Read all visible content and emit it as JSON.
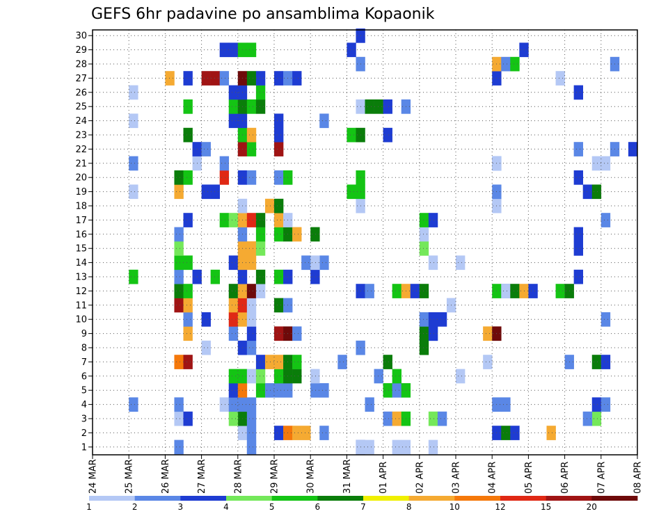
{
  "chart_data": {
    "type": "heatmap",
    "title": "GEFS 6hr padavine po ansamblima Kopaonik",
    "y_ticks": [
      "1",
      "2",
      "3",
      "4",
      "5",
      "6",
      "7",
      "8",
      "9",
      "10",
      "11",
      "12",
      "13",
      "14",
      "15",
      "16",
      "17",
      "18",
      "19",
      "20",
      "21",
      "22",
      "23",
      "24",
      "25",
      "26",
      "27",
      "28",
      "29",
      "30"
    ],
    "x_ticks": [
      "24 MAR",
      "25 MAR",
      "26 MAR",
      "27 MAR",
      "28 MAR",
      "29 MAR",
      "30 MAR",
      "31 MAR",
      "01 APR",
      "02 APR",
      "03 APR",
      "04 APR",
      "05 APR",
      "06 APR",
      "07 APR",
      "08 APR"
    ],
    "members": 30,
    "steps_per_day": 4,
    "grid": true,
    "colorbar": {
      "labels": [
        "1",
        "2",
        "3",
        "4",
        "5",
        "6",
        "7",
        "8",
        "10",
        "12",
        "15",
        "20"
      ],
      "colors": [
        "#b4c8f5",
        "#5a87e6",
        "#1e3cd2",
        "#74e85a",
        "#14c414",
        "#0a7d0a",
        "#f0f000",
        "#f5aa32",
        "#f5780a",
        "#e02814",
        "#a01414",
        "#6e0a0a"
      ]
    },
    "cells": [
      [
        "28 MAR",
        1,
        1
      ],
      [
        "28 MAR",
        1,
        2
      ],
      [
        "26 MAR",
        1,
        2
      ],
      [
        "31 MAR",
        1,
        3
      ],
      [
        "31 MAR",
        1,
        1
      ],
      [
        "01 APR",
        1,
        1
      ],
      [
        "31 MAR",
        2,
        1
      ],
      [
        "01 APR",
        2,
        1
      ],
      [
        "02 APR",
        1,
        1
      ],
      [
        "28 MAR",
        0,
        1
      ],
      [
        "28 MAR",
        1,
        2
      ],
      [
        "29 MAR",
        0,
        3
      ],
      [
        "29 MAR",
        1,
        10
      ],
      [
        "29 MAR",
        2,
        8
      ],
      [
        "29 MAR",
        3,
        8
      ],
      [
        "30 MAR",
        1,
        2
      ],
      [
        "04 APR",
        0,
        3
      ],
      [
        "04 APR",
        1,
        6
      ],
      [
        "04 APR",
        2,
        3
      ],
      [
        "05 APR",
        2,
        8
      ],
      [
        "26 MAR",
        1,
        1
      ],
      [
        "26 MAR",
        2,
        3
      ],
      [
        "28 MAR",
        0,
        6
      ],
      [
        "27 MAR",
        3,
        4
      ],
      [
        "28 MAR",
        1,
        2
      ],
      [
        "01 APR",
        0,
        2
      ],
      [
        "01 APR",
        1,
        8
      ],
      [
        "01 APR",
        2,
        5
      ],
      [
        "02 APR",
        1,
        4
      ],
      [
        "02 APR",
        2,
        2
      ],
      [
        "06 APR",
        3,
        4
      ],
      [
        "06 APR",
        2,
        2
      ],
      [
        "25 MAR",
        0,
        2
      ],
      [
        "26 MAR",
        1,
        2
      ],
      [
        "27 MAR",
        2,
        1
      ],
      [
        "27 MAR",
        3,
        2
      ],
      [
        "28 MAR",
        0,
        2
      ],
      [
        "28 MAR",
        1,
        2
      ],
      [
        "31 MAR",
        2,
        2
      ],
      [
        "04 APR",
        1,
        2
      ],
      [
        "04 APR",
        0,
        2
      ],
      [
        "06 APR",
        3,
        3
      ],
      [
        "07 APR",
        0,
        2
      ],
      [
        "27 MAR",
        3,
        3
      ],
      [
        "28 MAR",
        0,
        10
      ],
      [
        "28 MAR",
        2,
        5
      ],
      [
        "28 MAR",
        3,
        2
      ],
      [
        "29 MAR",
        0,
        2
      ],
      [
        "29 MAR",
        1,
        2
      ],
      [
        "30 MAR",
        0,
        2
      ],
      [
        "30 MAR",
        1,
        2
      ],
      [
        "01 APR",
        0,
        5
      ],
      [
        "01 APR",
        1,
        2
      ],
      [
        "01 APR",
        2,
        5
      ],
      [
        "03 APR",
        0,
        1
      ],
      [
        "27 MAR",
        3,
        5
      ],
      [
        "28 MAR",
        0,
        5
      ],
      [
        "28 MAR",
        1,
        1
      ],
      [
        "28 MAR",
        2,
        4
      ],
      [
        "29 MAR",
        0,
        5
      ],
      [
        "29 MAR",
        1,
        6
      ],
      [
        "29 MAR",
        2,
        6
      ],
      [
        "30 MAR",
        0,
        1
      ],
      [
        "31 MAR",
        3,
        2
      ],
      [
        "01 APR",
        1,
        5
      ],
      [
        "03 APR",
        3,
        1
      ],
      [
        "26 MAR",
        1,
        10
      ],
      [
        "26 MAR",
        2,
        15
      ],
      [
        "28 MAR",
        2,
        3
      ],
      [
        "28 MAR",
        3,
        8
      ],
      [
        "29 MAR",
        0,
        8
      ],
      [
        "29 MAR",
        1,
        6
      ],
      [
        "29 MAR",
        2,
        5
      ],
      [
        "30 MAR",
        3,
        2
      ],
      [
        "01 APR",
        0,
        6
      ],
      [
        "06 APR",
        0,
        2
      ],
      [
        "06 APR",
        3,
        6
      ],
      [
        "07 APR",
        0,
        3
      ],
      [
        "08 APR",
        0,
        2
      ],
      [
        "27 MAR",
        0,
        1
      ],
      [
        "28 MAR",
        0,
        3
      ],
      [
        "28 MAR",
        1,
        2
      ],
      [
        "31 MAR",
        1,
        2
      ],
      [
        "02 APR",
        0,
        6
      ],
      [
        "02 APR",
        1,
        2
      ],
      [
        "26 MAR",
        2,
        8
      ],
      [
        "27 MAR",
        3,
        2
      ],
      [
        "28 MAR",
        1,
        3
      ],
      [
        "29 MAR",
        0,
        15
      ],
      [
        "29 MAR",
        1,
        20
      ],
      [
        "29 MAR",
        2,
        2
      ],
      [
        "02 APR",
        0,
        6
      ],
      [
        "02 APR",
        1,
        3
      ],
      [
        "03 APR",
        3,
        8
      ],
      [
        "04 APR",
        0,
        20
      ],
      [
        "07 APR",
        0,
        2
      ],
      [
        "26 MAR",
        2,
        2
      ],
      [
        "27 MAR",
        0,
        3
      ],
      [
        "27 MAR",
        3,
        12
      ],
      [
        "28 MAR",
        0,
        8
      ],
      [
        "28 MAR",
        1,
        1
      ],
      [
        "02 APR",
        0,
        2
      ],
      [
        "02 APR",
        1,
        3
      ],
      [
        "02 APR",
        2,
        3
      ],
      [
        "02 APR",
        3,
        1
      ],
      [
        "26 MAR",
        1,
        15
      ],
      [
        "26 MAR",
        2,
        8
      ],
      [
        "27 MAR",
        3,
        8
      ],
      [
        "28 MAR",
        0,
        12
      ],
      [
        "28 MAR",
        1,
        1
      ],
      [
        "29 MAR",
        0,
        6
      ],
      [
        "29 MAR",
        1,
        2
      ],
      [
        "04 APR",
        1,
        2
      ],
      [
        "26 MAR",
        1,
        6
      ],
      [
        "26 MAR",
        2,
        5
      ],
      [
        "27 MAR",
        3,
        6
      ],
      [
        "28 MAR",
        0,
        8
      ],
      [
        "28 MAR",
        1,
        20
      ],
      [
        "28 MAR",
        2,
        1
      ],
      [
        "31 MAR",
        1,
        3
      ],
      [
        "31 MAR",
        2,
        2
      ],
      [
        "01 APR",
        1,
        5
      ],
      [
        "01 APR",
        2,
        8
      ],
      [
        "01 APR",
        3,
        3
      ],
      [
        "02 APR",
        0,
        6
      ],
      [
        "04 APR",
        0,
        5
      ],
      [
        "04 APR",
        1,
        1
      ],
      [
        "04 APR",
        2,
        6
      ],
      [
        "04 APR",
        3,
        8
      ],
      [
        "05 APR",
        0,
        3
      ],
      [
        "05 APR",
        3,
        5
      ],
      [
        "06 APR",
        0,
        6
      ],
      [
        "06 APR",
        1,
        3
      ],
      [
        "25 MAR",
        0,
        5
      ],
      [
        "26 MAR",
        1,
        2
      ],
      [
        "26 MAR",
        3,
        3
      ],
      [
        "27 MAR",
        1,
        5
      ],
      [
        "28 MAR",
        0,
        3
      ],
      [
        "28 MAR",
        2,
        6
      ],
      [
        "29 MAR",
        0,
        5
      ],
      [
        "29 MAR",
        1,
        3
      ],
      [
        "30 MAR",
        0,
        3
      ],
      [
        "30 MAR",
        1,
        2
      ],
      [
        "26 MAR",
        1,
        5
      ],
      [
        "26 MAR",
        2,
        5
      ],
      [
        "27 MAR",
        3,
        3
      ],
      [
        "28 MAR",
        0,
        8
      ],
      [
        "28 MAR",
        1,
        8
      ],
      [
        "29 MAR",
        3,
        2
      ],
      [
        "30 MAR",
        0,
        1
      ],
      [
        "02 APR",
        1,
        1
      ],
      [
        "03 APR",
        0,
        1
      ],
      [
        "06 APR",
        1,
        3
      ],
      [
        "26 MAR",
        1,
        4
      ],
      [
        "28 MAR",
        0,
        8
      ],
      [
        "28 MAR",
        1,
        8
      ],
      [
        "28 MAR",
        2,
        4
      ],
      [
        "02 APR",
        0,
        4
      ],
      [
        "06 APR",
        1,
        3
      ],
      [
        "26 MAR",
        1,
        2
      ],
      [
        "28 MAR",
        0,
        2
      ],
      [
        "28 MAR",
        2,
        5
      ],
      [
        "29 MAR",
        0,
        5
      ],
      [
        "29 MAR",
        1,
        6
      ],
      [
        "29 MAR",
        2,
        8
      ],
      [
        "30 MAR",
        0,
        6
      ],
      [
        "02 APR",
        0,
        1
      ],
      [
        "02 APR",
        1,
        1
      ],
      [
        "26 MAR",
        2,
        3
      ],
      [
        "27 MAR",
        2,
        5
      ],
      [
        "27 MAR",
        3,
        4
      ],
      [
        "28 MAR",
        0,
        8
      ],
      [
        "28 MAR",
        1,
        12
      ],
      [
        "28 MAR",
        2,
        6
      ],
      [
        "29 MAR",
        0,
        8
      ],
      [
        "29 MAR",
        1,
        1
      ],
      [
        "02 APR",
        0,
        5
      ],
      [
        "02 APR",
        1,
        3
      ],
      [
        "07 APR",
        0,
        2
      ],
      [
        "08 APR",
        0,
        12
      ],
      [
        "28 MAR",
        3,
        8
      ],
      [
        "29 MAR",
        0,
        6
      ],
      [
        "28 MAR",
        0,
        1
      ],
      [
        "31 MAR",
        1,
        1
      ],
      [
        "04 APR",
        0,
        1
      ],
      [
        "06 APR",
        2,
        3
      ],
      [
        "25 MAR",
        0,
        1
      ],
      [
        "26 MAR",
        1,
        8
      ],
      [
        "27 MAR",
        0,
        3
      ],
      [
        "27 MAR",
        1,
        3
      ],
      [
        "31 MAR",
        1,
        5
      ],
      [
        "31 MAR",
        0,
        5
      ],
      [
        "04 APR",
        0,
        2
      ],
      [
        "06 APR",
        3,
        6
      ],
      [
        "06 APR",
        1,
        3
      ],
      [
        "26 MAR",
        1,
        6
      ],
      [
        "26 MAR",
        2,
        5
      ],
      [
        "27 MAR",
        2,
        12
      ],
      [
        "28 MAR",
        0,
        3
      ],
      [
        "28 MAR",
        1,
        2
      ],
      [
        "29 MAR",
        0,
        2
      ],
      [
        "29 MAR",
        1,
        5
      ],
      [
        "31 MAR",
        1,
        5
      ],
      [
        "04 APR",
        0,
        2
      ],
      [
        "25 MAR",
        0,
        2
      ],
      [
        "26 MAR",
        3,
        1
      ],
      [
        "27 MAR",
        2,
        2
      ],
      [
        "04 APR",
        0,
        1
      ],
      [
        "06 APR",
        3,
        1
      ],
      [
        "07 APR",
        0,
        1
      ],
      [
        "07 APR",
        1,
        2
      ],
      [
        "26 MAR",
        3,
        3
      ],
      [
        "27 MAR",
        0,
        2
      ],
      [
        "28 MAR",
        0,
        15
      ],
      [
        "28 MAR",
        1,
        5
      ],
      [
        "29 MAR",
        0,
        15
      ],
      [
        "06 APR",
        1,
        2
      ],
      [
        "07 APR",
        3,
        3
      ],
      [
        "08 APR",
        0,
        2
      ],
      [
        "26 MAR",
        2,
        6
      ],
      [
        "28 MAR",
        0,
        5
      ],
      [
        "28 MAR",
        1,
        8
      ],
      [
        "29 MAR",
        0,
        3
      ],
      [
        "31 MAR",
        0,
        5
      ],
      [
        "31 MAR",
        1,
        6
      ],
      [
        "01 APR",
        0,
        3
      ],
      [
        "08 APR",
        0,
        5
      ],
      [
        "25 MAR",
        0,
        1
      ],
      [
        "27 MAR",
        3,
        3
      ],
      [
        "28 MAR",
        0,
        3
      ],
      [
        "29 MAR",
        0,
        3
      ],
      [
        "30 MAR",
        1,
        2
      ],
      [
        "31 MAR",
        1,
        1
      ],
      [
        "26 MAR",
        2,
        5
      ],
      [
        "27 MAR",
        3,
        5
      ],
      [
        "28 MAR",
        0,
        6
      ],
      [
        "28 MAR",
        1,
        5
      ],
      [
        "28 MAR",
        2,
        6
      ],
      [
        "31 MAR",
        2,
        6
      ],
      [
        "31 MAR",
        3,
        6
      ],
      [
        "01 APR",
        0,
        3
      ],
      [
        "01 APR",
        2,
        2
      ],
      [
        "06 APR",
        1,
        3
      ],
      [
        "25 MAR",
        0,
        1
      ],
      [
        "27 MAR",
        3,
        3
      ],
      [
        "28 MAR",
        0,
        3
      ],
      [
        "28 MAR",
        2,
        5
      ],
      [
        "05 APR",
        3,
        1
      ],
      [
        "26 MAR",
        0,
        8
      ],
      [
        "26 MAR",
        2,
        3
      ],
      [
        "27 MAR",
        0,
        15
      ],
      [
        "27 MAR",
        1,
        15
      ],
      [
        "27 MAR",
        2,
        2
      ],
      [
        "28 MAR",
        0,
        20
      ],
      [
        "28 MAR",
        1,
        6
      ],
      [
        "28 MAR",
        2,
        3
      ],
      [
        "29 MAR",
        0,
        3
      ],
      [
        "29 MAR",
        1,
        2
      ],
      [
        "29 MAR",
        2,
        3
      ],
      [
        "04 APR",
        0,
        3
      ],
      [
        "07 APR",
        1,
        2
      ],
      [
        "31 MAR",
        1,
        2
      ],
      [
        "04 APR",
        0,
        8
      ],
      [
        "04 APR",
        1,
        2
      ],
      [
        "04 APR",
        2,
        5
      ],
      [
        "04 APR",
        3,
        3
      ],
      [
        "27 MAR",
        2,
        3
      ],
      [
        "27 MAR",
        3,
        3
      ],
      [
        "28 MAR",
        0,
        5
      ],
      [
        "28 MAR",
        1,
        5
      ],
      [
        "31 MAR",
        0,
        3
      ],
      [
        "31 MAR",
        1,
        3
      ]
    ]
  }
}
